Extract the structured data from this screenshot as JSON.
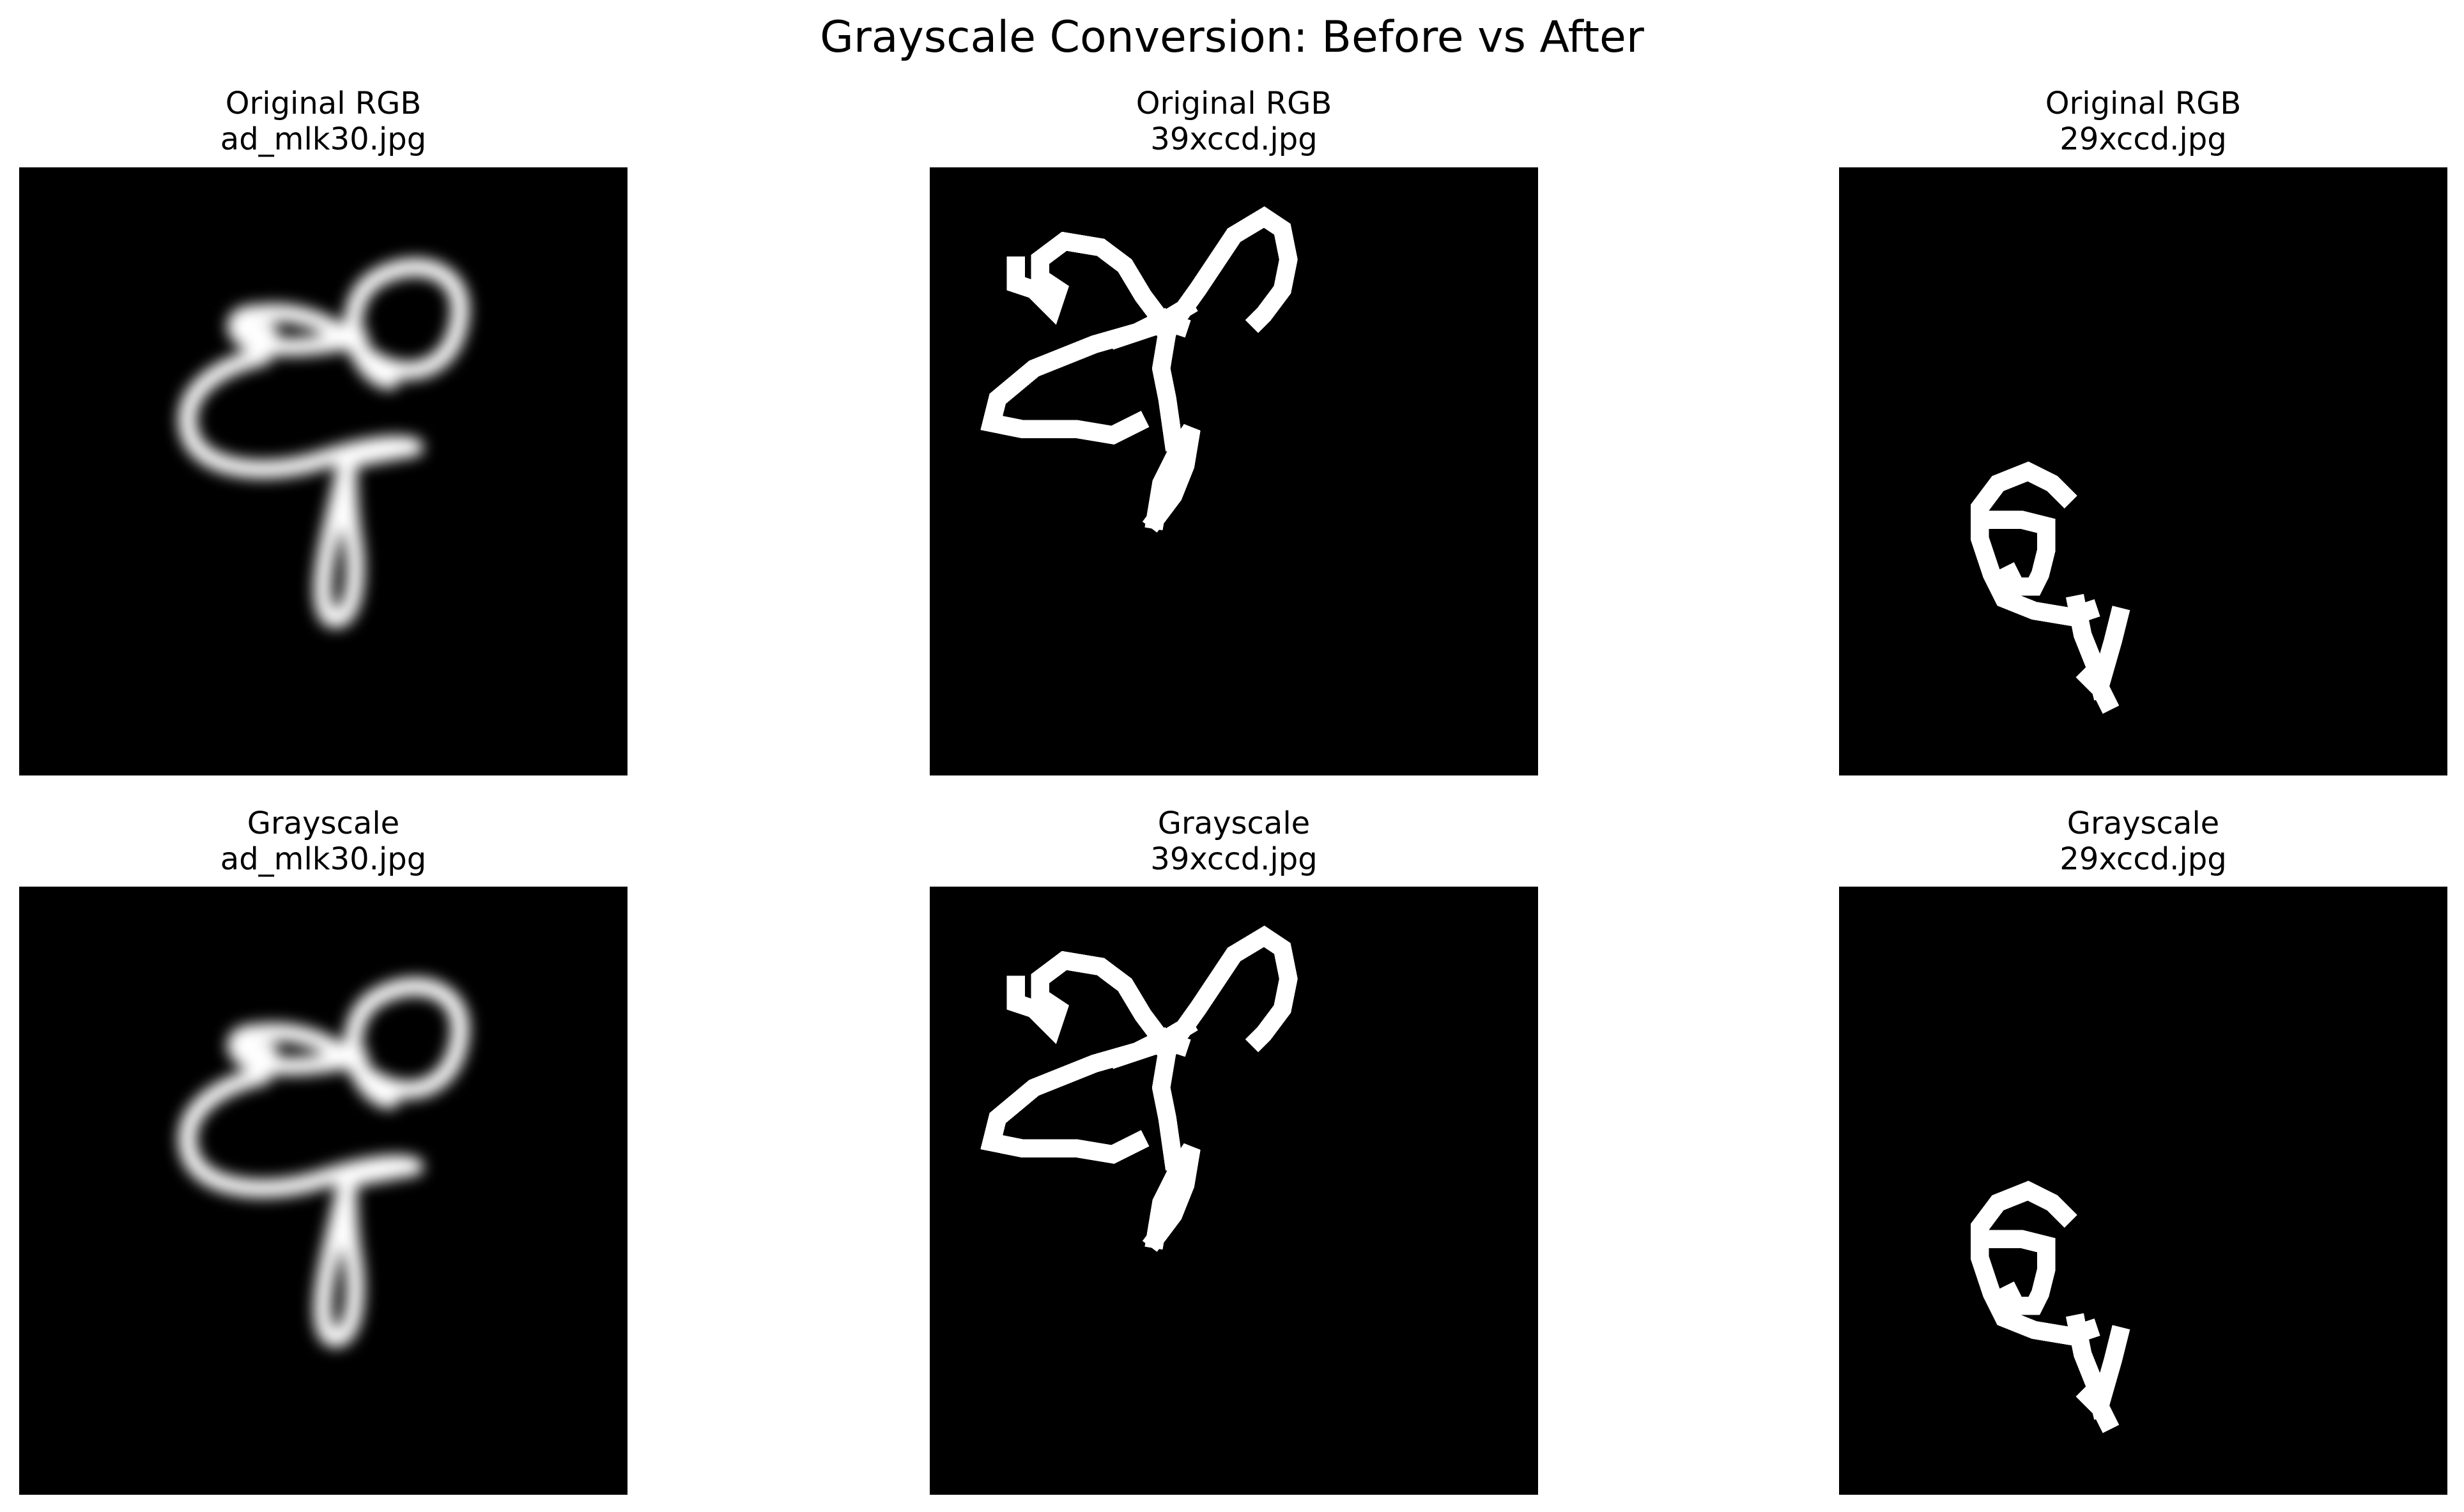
{
  "figure": {
    "title": "Grayscale Conversion: Before vs After"
  },
  "rows": [
    {
      "mode": "Original RGB",
      "panels": [
        {
          "mode": "Original RGB",
          "filename": "ad_mlk30.jpg",
          "glyph": "handwritten-loop-glyph"
        },
        {
          "mode": "Original RGB",
          "filename": "39xccd.jpg",
          "glyph": "handwritten-leaf-glyph"
        },
        {
          "mode": "Original RGB",
          "filename": "29xccd.jpg",
          "glyph": "handwritten-g-glyph"
        }
      ]
    },
    {
      "mode": "Grayscale",
      "panels": [
        {
          "mode": "Grayscale",
          "filename": "ad_mlk30.jpg",
          "glyph": "handwritten-loop-glyph"
        },
        {
          "mode": "Grayscale",
          "filename": "39xccd.jpg",
          "glyph": "handwritten-leaf-glyph"
        },
        {
          "mode": "Grayscale",
          "filename": "29xccd.jpg",
          "glyph": "handwritten-g-glyph"
        }
      ]
    }
  ],
  "colors": {
    "background": "#ffffff",
    "image_background": "#000000",
    "stroke": "#ffffff"
  }
}
